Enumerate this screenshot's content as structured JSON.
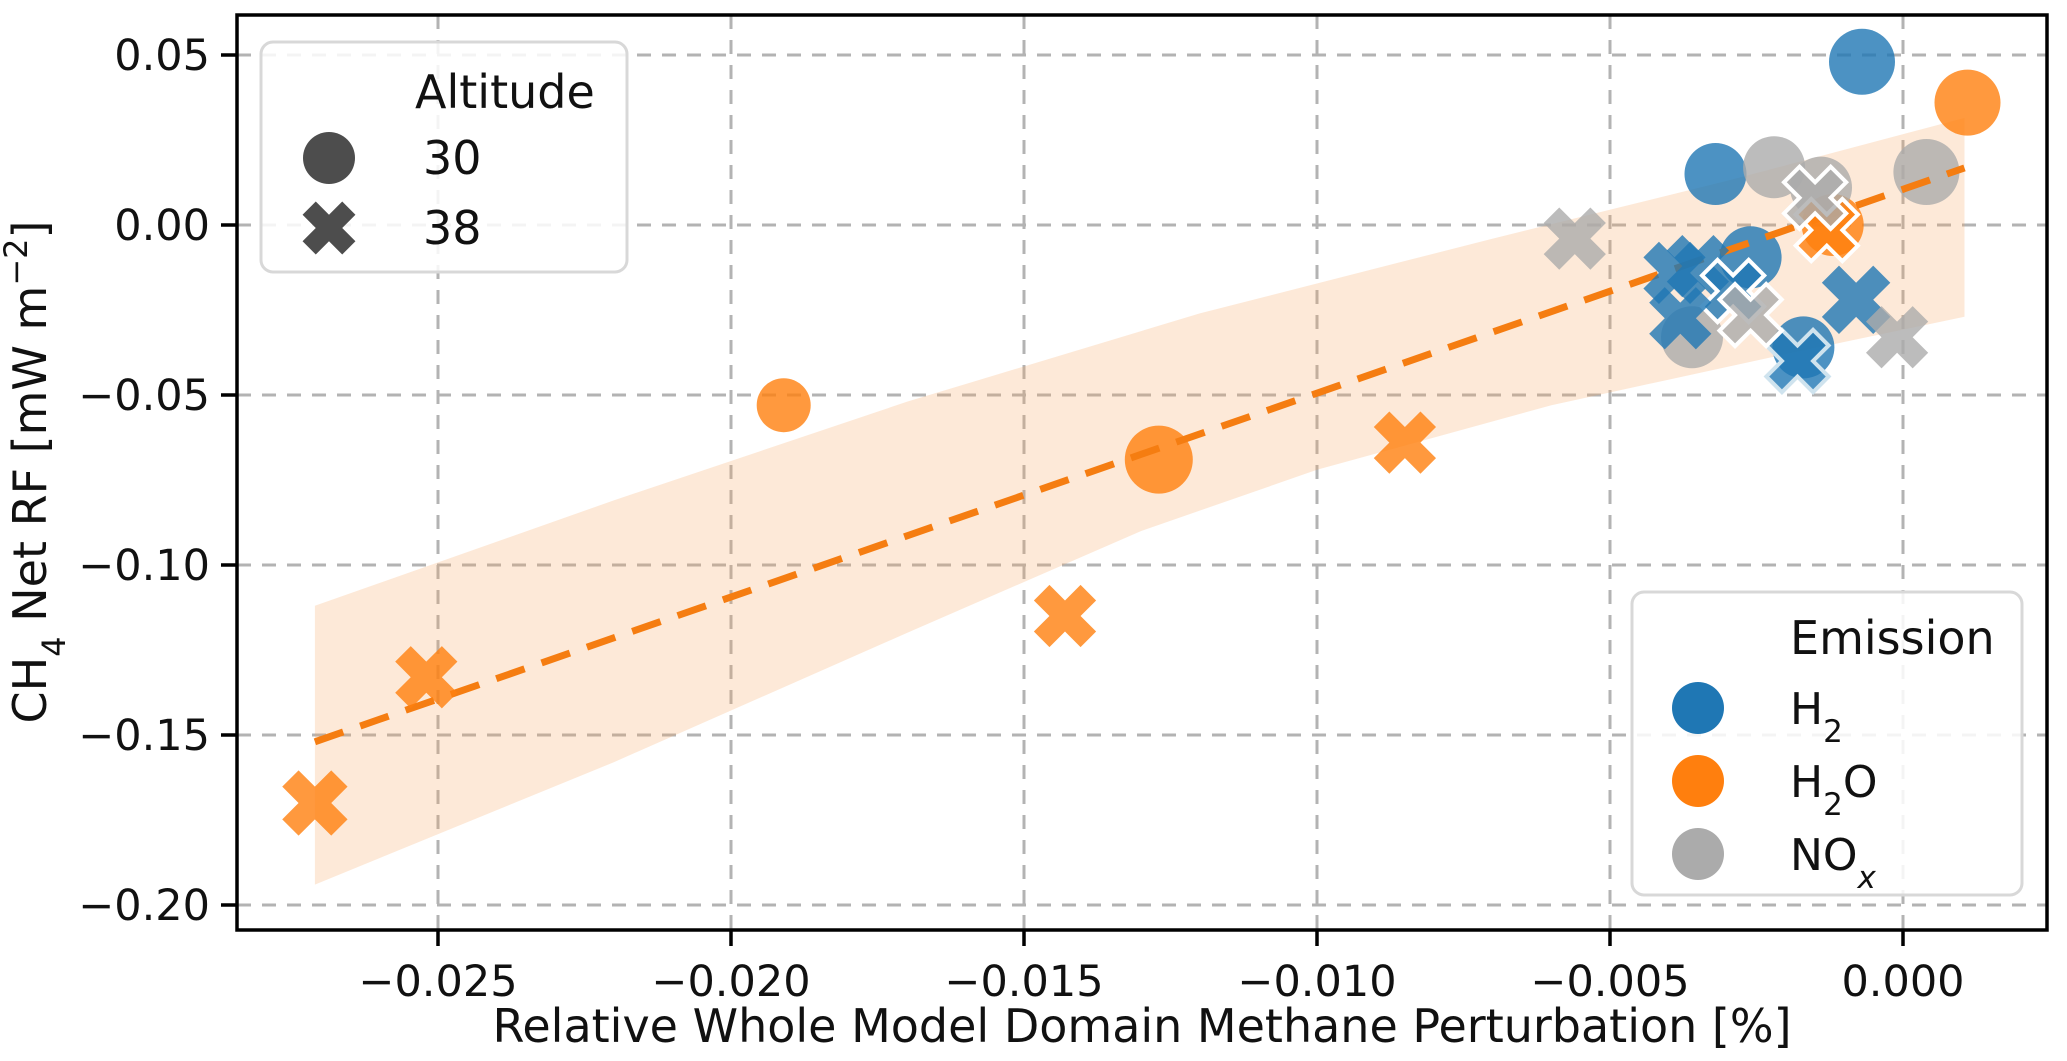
{
  "chart_data": {
    "type": "scatter",
    "title": "",
    "xlabel": "Relative Whole Model Domain Methane Perturbation [%]",
    "ylabel": "CH4 Net RF [mW m-2]",
    "ylabel_parts": {
      "p1": "CH",
      "sub1": "4",
      "p2": " Net RF [mW m",
      "sup1": "−2",
      "p3": "]"
    },
    "xlim": [
      -0.0284,
      0.0024
    ],
    "ylim": [
      -0.207,
      0.062
    ],
    "grid": true,
    "x_ticks": [
      {
        "v": -0.025,
        "label": "−0.025"
      },
      {
        "v": -0.02,
        "label": "−0.020"
      },
      {
        "v": -0.015,
        "label": "−0.015"
      },
      {
        "v": -0.01,
        "label": "−0.010"
      },
      {
        "v": -0.005,
        "label": "−0.005"
      },
      {
        "v": 0.0,
        "label": "0.000"
      }
    ],
    "y_ticks": [
      {
        "v": 0.05,
        "label": "0.05"
      },
      {
        "v": 0.0,
        "label": "0.00"
      },
      {
        "v": -0.05,
        "label": "−0.05"
      },
      {
        "v": -0.1,
        "label": "−0.10"
      },
      {
        "v": -0.15,
        "label": "−0.15"
      },
      {
        "v": -0.2,
        "label": "−0.20"
      }
    ],
    "palette": {
      "h2": "#1f77b4",
      "h2o": "#ff7f0e",
      "nox": "#ababab"
    },
    "alpha": 0.8,
    "grid_color": "#b3b3b3",
    "trend": {
      "color": "#f57d11",
      "x1": -0.0271,
      "y1": -0.152,
      "x2": 0.00105,
      "y2": 0.0168
    },
    "band": {
      "color": "#f7a35c",
      "opacity": 0.24,
      "polygon": [
        [
          -0.0271,
          -0.112
        ],
        [
          -0.022,
          -0.081
        ],
        [
          -0.017,
          -0.052
        ],
        [
          -0.012,
          -0.026
        ],
        [
          -0.007,
          -0.004
        ],
        [
          -0.003,
          0.013
        ],
        [
          0.00105,
          0.0315
        ],
        [
          0.00105,
          -0.027
        ],
        [
          -0.002,
          -0.038
        ],
        [
          -0.006,
          -0.053
        ],
        [
          -0.01,
          -0.072
        ],
        [
          -0.013,
          -0.09
        ],
        [
          -0.017,
          -0.12
        ],
        [
          -0.022,
          -0.158
        ],
        [
          -0.0271,
          -0.194
        ]
      ]
    },
    "series": [
      {
        "name": "H2",
        "altitude": 30,
        "marker": "circle",
        "color": "#1f77b4",
        "points": [
          {
            "x": -0.0007,
            "y": 0.048,
            "r": 33
          },
          {
            "x": -0.0032,
            "y": 0.015
          },
          {
            "x": -0.0026,
            "y": -0.0095
          },
          {
            "x": -0.0017,
            "y": -0.036
          }
        ]
      },
      {
        "name": "H2O",
        "altitude": 30,
        "marker": "circle",
        "color": "#ff7f0e",
        "points": [
          {
            "x": -0.0191,
            "y": -0.053,
            "r": 27
          },
          {
            "x": -0.0127,
            "y": -0.069,
            "r": 34
          },
          {
            "x": -0.0012,
            "y": 0.0
          },
          {
            "x": 0.0011,
            "y": 0.036,
            "r": 33
          }
        ]
      },
      {
        "name": "NOx",
        "altitude": 30,
        "marker": "circle",
        "color": "#ababab",
        "points": [
          {
            "x": -0.0022,
            "y": 0.017
          },
          {
            "x": -0.0014,
            "y": 0.011
          },
          {
            "x": 0.0004,
            "y": 0.0156,
            "r": 33
          },
          {
            "x": -0.0036,
            "y": -0.033
          }
        ]
      },
      {
        "name": "H2",
        "altitude": 38,
        "marker": "x",
        "color": "#1f77b4",
        "points": [
          {
            "x": -0.0039,
            "y": -0.0141
          },
          {
            "x": -0.0035,
            "y": -0.0121
          },
          {
            "x": -0.0029,
            "y": -0.0194,
            "edge": "#ffffff"
          },
          {
            "x": -0.0038,
            "y": -0.0274
          },
          {
            "x": -0.0008,
            "y": -0.022,
            "s": 1.1
          },
          {
            "x": -0.0018,
            "y": -0.04,
            "edge": "#cfe3ee"
          }
        ]
      },
      {
        "name": "H2O",
        "altitude": 38,
        "marker": "x",
        "color": "#ff7f0e",
        "points": [
          {
            "x": -0.0271,
            "y": -0.17,
            "s": 1.05
          },
          {
            "x": -0.0252,
            "y": -0.133
          },
          {
            "x": -0.0143,
            "y": -0.115
          },
          {
            "x": -0.0085,
            "y": -0.064
          },
          {
            "x": -0.0013,
            "y": -0.0015,
            "edge": "#ffffff"
          }
        ]
      },
      {
        "name": "NOx",
        "altitude": 38,
        "marker": "x",
        "color": "#ababab",
        "points": [
          {
            "x": -0.0056,
            "y": -0.004
          },
          {
            "x": -0.0015,
            "y": 0.008,
            "edge": "#ffffff"
          },
          {
            "x": -0.0026,
            "y": -0.0265,
            "edge": "#ffffff"
          },
          {
            "x": -0.0001,
            "y": -0.033
          }
        ]
      }
    ]
  },
  "legend_altitude": {
    "title": "Altitude",
    "handle_color": "#4d4d4d",
    "items": [
      {
        "label": "30",
        "marker": "circle"
      },
      {
        "label": "38",
        "marker": "x"
      }
    ]
  },
  "legend_emission": {
    "title": "Emission",
    "items": [
      {
        "main": "H",
        "sub": "2",
        "tail": ""
      },
      {
        "main": "H",
        "sub": "2",
        "tail": "O"
      },
      {
        "main": "NO",
        "sub": "x",
        "tail": ""
      }
    ]
  }
}
